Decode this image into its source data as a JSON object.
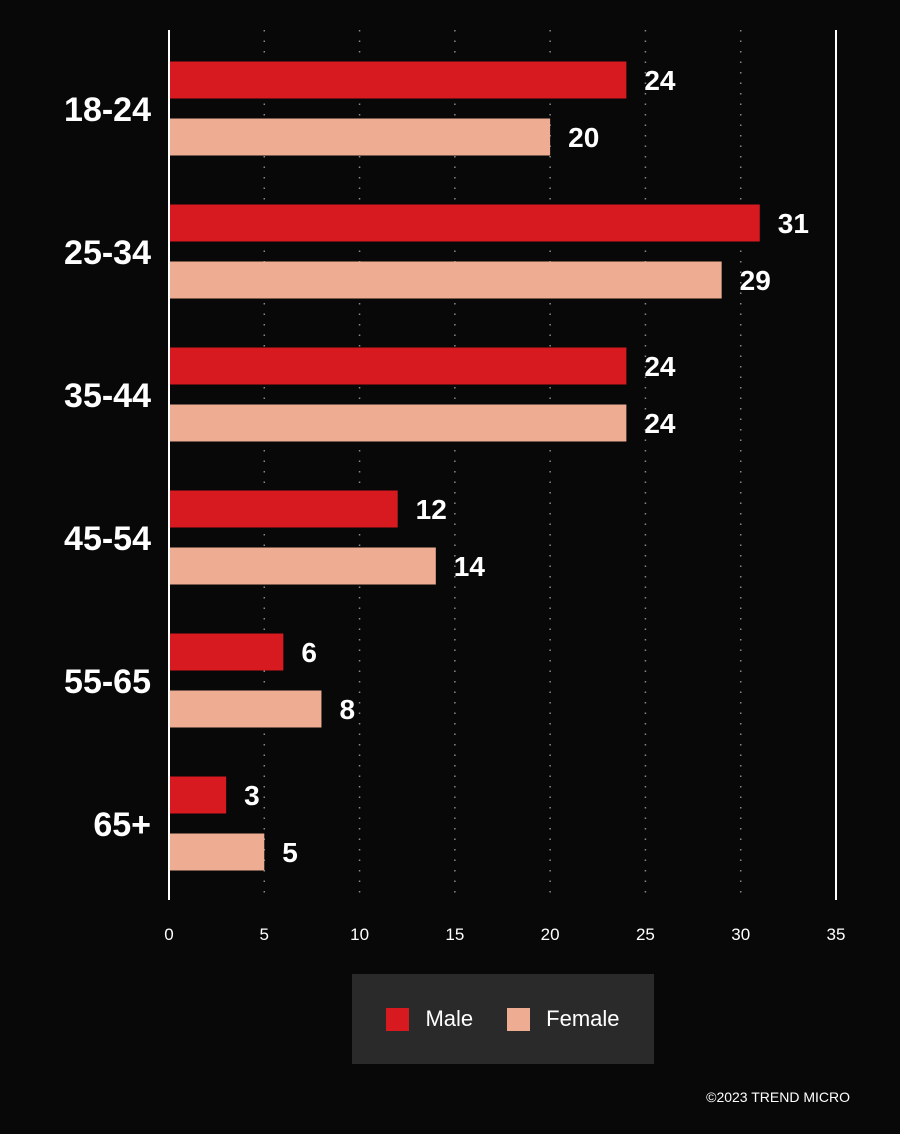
{
  "chart_data": {
    "type": "bar",
    "orientation": "horizontal",
    "categories": [
      "18-24",
      "25-34",
      "35-44",
      "45-54",
      "55-65",
      "65+"
    ],
    "series": [
      {
        "name": "Male",
        "color": "#d71920",
        "values": [
          24,
          31,
          24,
          12,
          6,
          3
        ]
      },
      {
        "name": "Female",
        "color": "#eeac93",
        "values": [
          20,
          29,
          24,
          14,
          8,
          5
        ]
      }
    ],
    "xlim": [
      0,
      35
    ],
    "xticks": [
      "0",
      "5",
      "10",
      "15",
      "20",
      "25",
      "30",
      "35"
    ],
    "grid": "dotted vertical",
    "legend": "bottom-center"
  },
  "legend": {
    "male_label": "Male",
    "female_label": "Female",
    "male_color": "#d71920",
    "female_color": "#eeac93"
  },
  "copyright": "©2023 TREND MICRO"
}
